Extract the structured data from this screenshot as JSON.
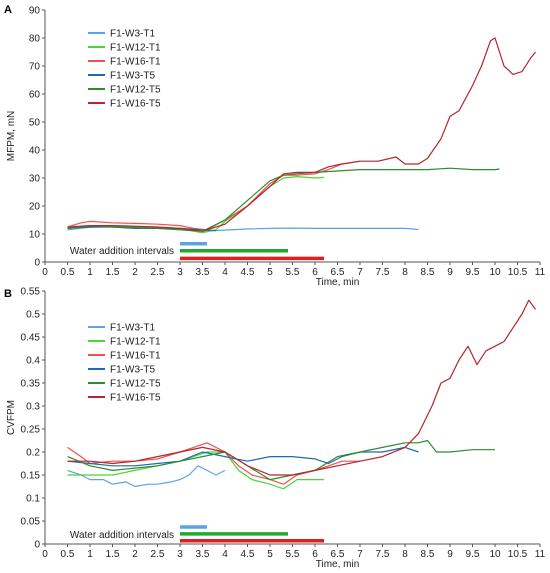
{
  "chart_data": [
    {
      "type": "line",
      "panel_label": "A",
      "xlabel": "Time, min",
      "ylabel": "MFPM, mN",
      "xlim": [
        0,
        11
      ],
      "ylim": [
        0,
        90
      ],
      "xticks": [
        "0",
        "0.5",
        "1",
        "1.5",
        "2",
        "2.5",
        "3",
        "3.5",
        "4",
        "4.5",
        "5",
        "5.5",
        "6",
        "6.5",
        "7",
        "7.5",
        "8",
        "8.5",
        "9",
        "9.5",
        "10",
        "10.5",
        "11"
      ],
      "yticks": [
        "0",
        "10",
        "20",
        "30",
        "40",
        "50",
        "60",
        "70",
        "80",
        "90"
      ],
      "grid": false,
      "legend_position": "top-left",
      "annotation": "Water addition intervals",
      "intervals": [
        {
          "start": 3.0,
          "end": 3.6,
          "color": "#5aa3e6",
          "y": 6.5
        },
        {
          "start": 3.0,
          "end": 5.4,
          "color": "#22a82e",
          "y": 4.0
        },
        {
          "start": 3.0,
          "end": 6.2,
          "color": "#e02020",
          "y": 1.3
        }
      ],
      "series": [
        {
          "name": "F1-W3-T1",
          "color": "#5aa3e6",
          "x": [
            0.5,
            1,
            1.5,
            2,
            2.5,
            3,
            3.5,
            4,
            4.5,
            5,
            5.5,
            6,
            6.5,
            7,
            7.5,
            8,
            8.3
          ],
          "y": [
            11.5,
            12.4,
            12.6,
            12.5,
            12.2,
            11.5,
            11.0,
            11.4,
            11.8,
            12.0,
            12.1,
            12.0,
            12.0,
            12.0,
            12.0,
            12.0,
            11.6
          ]
        },
        {
          "name": "F1-W12-T1",
          "color": "#4cd43a",
          "x": [
            0.5,
            1,
            1.5,
            2,
            2.5,
            3,
            3.5,
            3.8,
            4,
            4.5,
            5,
            5.3,
            5.6,
            6,
            6.2
          ],
          "y": [
            12.0,
            12.5,
            12.6,
            12.5,
            12.0,
            11.8,
            10.5,
            11.5,
            14.5,
            20.0,
            27.0,
            30.0,
            30.5,
            30.0,
            30.2
          ]
        },
        {
          "name": "F1-W16-T1",
          "color": "#f05050",
          "x": [
            0.5,
            0.8,
            1,
            1.5,
            2,
            2.5,
            3,
            3.3,
            3.6,
            4,
            4.5,
            5,
            5.3,
            5.6,
            6,
            6.3,
            6.6,
            7
          ],
          "y": [
            12.5,
            14.0,
            14.5,
            14.0,
            13.8,
            13.5,
            13.0,
            12.0,
            11.5,
            15.0,
            20.0,
            28.0,
            31.0,
            31.0,
            31.5,
            33.0,
            35.0,
            36.0
          ]
        },
        {
          "name": "F1-W3-T5",
          "color": "#1f6bb0",
          "x": [
            0.5,
            1,
            1.5,
            2,
            2.5,
            3,
            3.5,
            3.8
          ],
          "y": [
            12.0,
            12.5,
            12.5,
            12.0,
            12.0,
            12.0,
            11.5,
            11.2
          ]
        },
        {
          "name": "F1-W12-T5",
          "color": "#2e8b2e",
          "x": [
            0.5,
            1,
            1.5,
            2,
            2.5,
            3,
            3.5,
            4,
            4.5,
            5,
            5.3,
            5.6,
            6,
            6.5,
            7,
            7.5,
            8,
            8.5,
            9,
            9.5,
            10,
            10.1
          ],
          "y": [
            12.0,
            12.8,
            12.5,
            12.3,
            12.0,
            11.5,
            11.0,
            15.0,
            22.0,
            29.0,
            31.0,
            31.5,
            32.0,
            32.5,
            33.0,
            33.0,
            33.0,
            33.0,
            33.5,
            33.0,
            33.0,
            33.2
          ]
        },
        {
          "name": "F1-W16-T5",
          "color": "#b3262a",
          "x": [
            0.5,
            1,
            1.5,
            2,
            2.5,
            3,
            3.5,
            4,
            4.5,
            5,
            5.3,
            5.6,
            6,
            6.3,
            6.6,
            7,
            7.4,
            7.8,
            8,
            8.3,
            8.5,
            8.8,
            9,
            9.2,
            9.5,
            9.7,
            9.9,
            10,
            10.2,
            10.4,
            10.6,
            10.8,
            10.9
          ],
          "y": [
            12.5,
            13.0,
            13.0,
            12.8,
            12.5,
            12.0,
            11.0,
            13.5,
            20.0,
            27.0,
            31.5,
            32.0,
            32.0,
            34.0,
            35.0,
            36.0,
            36.0,
            37.5,
            35.0,
            35.0,
            37.0,
            44.0,
            52.0,
            54.0,
            63.0,
            70.0,
            79.0,
            80.0,
            70.0,
            67.0,
            68.0,
            73.0,
            75.0
          ]
        }
      ]
    },
    {
      "type": "line",
      "panel_label": "B",
      "xlabel": "Time, min",
      "ylabel": "CVFPM",
      "xlim": [
        0,
        11
      ],
      "ylim": [
        0,
        0.55
      ],
      "xticks": [
        "0",
        "0.5",
        "1",
        "1.5",
        "2",
        "2.5",
        "3",
        "3.5",
        "4",
        "4.5",
        "5",
        "5.5",
        "6",
        "6.5",
        "7",
        "7.5",
        "8",
        "8.5",
        "9",
        "9.5",
        "10",
        "10.5",
        "11"
      ],
      "yticks": [
        "0",
        "0.05",
        "0.1",
        "0.15",
        "0.2",
        "0.25",
        "0.3",
        "0.35",
        "0.4",
        "0.45",
        "0.5",
        "0.55"
      ],
      "grid": false,
      "legend_position": "top-left",
      "annotation": "Water addition intervals",
      "intervals": [
        {
          "start": 3.0,
          "end": 3.6,
          "color": "#5aa3e6",
          "y": 0.037
        },
        {
          "start": 3.0,
          "end": 5.4,
          "color": "#22a82e",
          "y": 0.022
        },
        {
          "start": 3.0,
          "end": 6.2,
          "color": "#e02020",
          "y": 0.007
        }
      ],
      "series": [
        {
          "name": "F1-W3-T1",
          "color": "#5aa3e6",
          "x": [
            0.5,
            0.8,
            1,
            1.3,
            1.5,
            1.8,
            2,
            2.3,
            2.5,
            2.8,
            3,
            3.2,
            3.4,
            3.6,
            3.8,
            4
          ],
          "y": [
            0.16,
            0.15,
            0.14,
            0.14,
            0.13,
            0.135,
            0.125,
            0.13,
            0.13,
            0.135,
            0.14,
            0.15,
            0.17,
            0.16,
            0.15,
            0.16
          ]
        },
        {
          "name": "F1-W12-T1",
          "color": "#4cd43a",
          "x": [
            0.5,
            1,
            1.5,
            2,
            2.5,
            3,
            3.3,
            3.6,
            4,
            4.3,
            4.6,
            5,
            5.3,
            5.6,
            6,
            6.2
          ],
          "y": [
            0.15,
            0.15,
            0.15,
            0.16,
            0.17,
            0.18,
            0.19,
            0.2,
            0.2,
            0.16,
            0.14,
            0.13,
            0.12,
            0.14,
            0.14,
            0.14
          ]
        },
        {
          "name": "F1-W16-T1",
          "color": "#f05050",
          "x": [
            0.5,
            0.8,
            1,
            1.5,
            2,
            2.5,
            3,
            3.3,
            3.6,
            4,
            4.3,
            4.6,
            5,
            5.3,
            5.6,
            6,
            6.3,
            6.6,
            7
          ],
          "y": [
            0.21,
            0.19,
            0.175,
            0.18,
            0.18,
            0.185,
            0.2,
            0.21,
            0.22,
            0.2,
            0.17,
            0.15,
            0.14,
            0.13,
            0.15,
            0.16,
            0.17,
            0.18,
            0.18
          ]
        },
        {
          "name": "F1-W3-T5",
          "color": "#1f6bb0",
          "x": [
            0.5,
            1,
            1.5,
            2,
            2.5,
            3,
            3.5,
            4,
            4.5,
            5,
            5.5,
            6,
            6.3,
            6.6,
            7,
            7.5,
            8,
            8.3
          ],
          "y": [
            0.18,
            0.175,
            0.17,
            0.17,
            0.175,
            0.18,
            0.2,
            0.19,
            0.18,
            0.19,
            0.19,
            0.185,
            0.175,
            0.19,
            0.2,
            0.2,
            0.21,
            0.2
          ]
        },
        {
          "name": "F1-W12-T5",
          "color": "#2e8b2e",
          "x": [
            0.5,
            1,
            1.5,
            2,
            2.5,
            3,
            3.5,
            4,
            4.5,
            5,
            5.5,
            6,
            6.5,
            7,
            7.5,
            8,
            8.3,
            8.5,
            8.7,
            9,
            9.5,
            10
          ],
          "y": [
            0.19,
            0.17,
            0.16,
            0.165,
            0.17,
            0.18,
            0.19,
            0.2,
            0.17,
            0.14,
            0.15,
            0.16,
            0.19,
            0.2,
            0.21,
            0.22,
            0.22,
            0.225,
            0.2,
            0.2,
            0.205,
            0.205
          ]
        },
        {
          "name": "F1-W16-T5",
          "color": "#b3262a",
          "x": [
            0.5,
            1,
            1.5,
            2,
            2.5,
            3,
            3.5,
            4,
            4.5,
            5,
            5.5,
            6,
            6.5,
            7,
            7.5,
            8,
            8.3,
            8.6,
            8.8,
            9,
            9.2,
            9.4,
            9.6,
            9.8,
            10,
            10.2,
            10.4,
            10.6,
            10.75,
            10.9
          ],
          "y": [
            0.18,
            0.18,
            0.175,
            0.18,
            0.19,
            0.2,
            0.21,
            0.2,
            0.17,
            0.15,
            0.15,
            0.16,
            0.17,
            0.18,
            0.19,
            0.21,
            0.24,
            0.3,
            0.35,
            0.36,
            0.4,
            0.43,
            0.39,
            0.42,
            0.43,
            0.44,
            0.47,
            0.5,
            0.53,
            0.51
          ]
        }
      ]
    }
  ]
}
